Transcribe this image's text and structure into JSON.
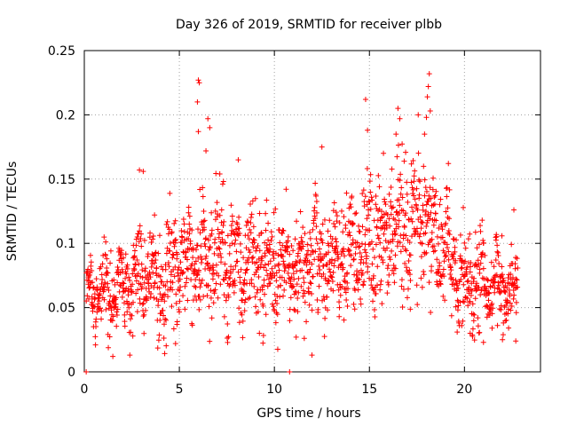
{
  "chart_data": {
    "type": "scatter",
    "title": "Day 326 of 2019, SRMTID for receiver plbb",
    "xlabel": "GPS time / hours",
    "ylabel": "SRMTID / TECUs",
    "xlim": [
      0,
      24
    ],
    "ylim": [
      0,
      0.25
    ],
    "xticks": [
      0,
      5,
      10,
      15,
      20
    ],
    "yticks": [
      0,
      0.05,
      0.1,
      0.15,
      0.2,
      0.25
    ],
    "xtick_labels": [
      "0",
      "5",
      "10",
      "15",
      "20"
    ],
    "ytick_labels": [
      "0",
      "0.05",
      "0.1",
      "0.15",
      "0.2",
      "0.25"
    ],
    "grid": true,
    "marker": "+",
    "series": [
      {
        "name": "SRMTID",
        "color": "#ff0000",
        "x_start": 0.1,
        "x_end": 22.8,
        "x_step": 0.0125,
        "mean_profile": [
          [
            0.0,
            0.058
          ],
          [
            1.0,
            0.062
          ],
          [
            2.0,
            0.066
          ],
          [
            3.0,
            0.075
          ],
          [
            4.0,
            0.068
          ],
          [
            5.0,
            0.08
          ],
          [
            6.0,
            0.095
          ],
          [
            7.0,
            0.09
          ],
          [
            8.0,
            0.085
          ],
          [
            9.0,
            0.088
          ],
          [
            10.0,
            0.082
          ],
          [
            11.0,
            0.08
          ],
          [
            12.0,
            0.09
          ],
          [
            13.0,
            0.085
          ],
          [
            14.0,
            0.09
          ],
          [
            15.0,
            0.1
          ],
          [
            16.0,
            0.11
          ],
          [
            17.0,
            0.12
          ],
          [
            18.0,
            0.115
          ],
          [
            19.0,
            0.1
          ],
          [
            20.0,
            0.065
          ],
          [
            21.0,
            0.07
          ],
          [
            22.0,
            0.068
          ],
          [
            22.8,
            0.06
          ]
        ],
        "spread_profile": [
          [
            0.0,
            0.013
          ],
          [
            3.0,
            0.018
          ],
          [
            6.0,
            0.023
          ],
          [
            12.0,
            0.02
          ],
          [
            15.0,
            0.025
          ],
          [
            18.0,
            0.028
          ],
          [
            20.0,
            0.016
          ],
          [
            22.8,
            0.014
          ]
        ],
        "outliers": [
          {
            "x": 0.1,
            "y": 0.0
          },
          {
            "x": 10.8,
            "y": 0.0
          },
          {
            "x": 1.5,
            "y": 0.012
          },
          {
            "x": 2.9,
            "y": 0.157
          },
          {
            "x": 3.1,
            "y": 0.156
          },
          {
            "x": 6.0,
            "y": 0.227
          },
          {
            "x": 6.05,
            "y": 0.225
          },
          {
            "x": 5.95,
            "y": 0.21
          },
          {
            "x": 6.0,
            "y": 0.187
          },
          {
            "x": 6.5,
            "y": 0.197
          },
          {
            "x": 6.6,
            "y": 0.19
          },
          {
            "x": 6.4,
            "y": 0.172
          },
          {
            "x": 8.1,
            "y": 0.165
          },
          {
            "x": 12.5,
            "y": 0.175
          },
          {
            "x": 14.8,
            "y": 0.212
          },
          {
            "x": 14.9,
            "y": 0.188
          },
          {
            "x": 16.5,
            "y": 0.205
          },
          {
            "x": 16.6,
            "y": 0.197
          },
          {
            "x": 16.4,
            "y": 0.185
          },
          {
            "x": 18.15,
            "y": 0.232
          },
          {
            "x": 18.1,
            "y": 0.222
          },
          {
            "x": 18.05,
            "y": 0.214
          },
          {
            "x": 18.2,
            "y": 0.203
          },
          {
            "x": 18.0,
            "y": 0.198
          },
          {
            "x": 17.9,
            "y": 0.185
          },
          {
            "x": 4.8,
            "y": 0.022
          },
          {
            "x": 20.3,
            "y": 0.03
          },
          {
            "x": 21.0,
            "y": 0.023
          },
          {
            "x": 22.0,
            "y": 0.025
          },
          {
            "x": 22.7,
            "y": 0.024
          },
          {
            "x": 22.6,
            "y": 0.126
          }
        ]
      }
    ]
  }
}
